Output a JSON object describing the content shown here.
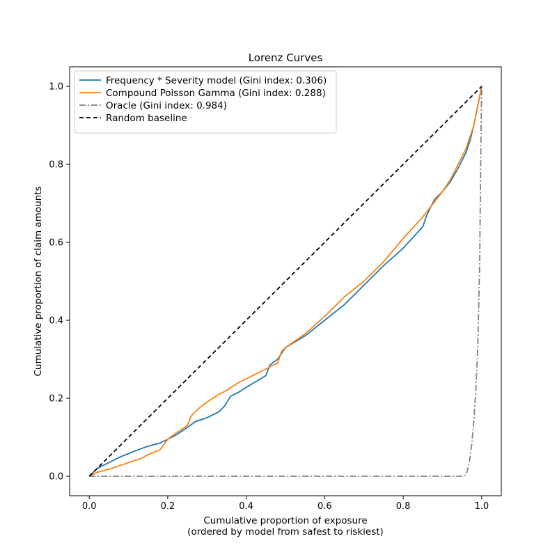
{
  "chart_data": {
    "type": "line",
    "title": "Lorenz Curves",
    "xlabel": "Cumulative proportion of exposure",
    "xlabel_line2": "(ordered by model from safest to riskiest)",
    "ylabel": "Cumulative proportion of claim amounts",
    "xlim": [
      -0.05,
      1.05
    ],
    "ylim": [
      -0.05,
      1.05
    ],
    "xticks": [
      "0.0",
      "0.2",
      "0.4",
      "0.6",
      "0.8",
      "1.0"
    ],
    "yticks": [
      "0.0",
      "0.2",
      "0.4",
      "0.6",
      "0.8",
      "1.0"
    ],
    "grid": false,
    "legend_position": "upper-left",
    "series": [
      {
        "name": "Frequency * Severity model (Gini index: 0.306)",
        "color": "#1f77b4",
        "style": "solid",
        "x": [
          0.0,
          0.02,
          0.05,
          0.08,
          0.1,
          0.13,
          0.15,
          0.18,
          0.2,
          0.22,
          0.25,
          0.27,
          0.3,
          0.33,
          0.345,
          0.36,
          0.38,
          0.4,
          0.42,
          0.45,
          0.46,
          0.48,
          0.49,
          0.5,
          0.55,
          0.6,
          0.65,
          0.7,
          0.75,
          0.8,
          0.85,
          0.86,
          0.88,
          0.9,
          0.92,
          0.94,
          0.96,
          0.97,
          0.98,
          0.99,
          1.0
        ],
        "y": [
          0.0,
          0.02,
          0.035,
          0.05,
          0.058,
          0.07,
          0.077,
          0.085,
          0.095,
          0.105,
          0.125,
          0.14,
          0.15,
          0.165,
          0.18,
          0.205,
          0.215,
          0.228,
          0.24,
          0.258,
          0.285,
          0.3,
          0.315,
          0.33,
          0.36,
          0.4,
          0.44,
          0.49,
          0.54,
          0.585,
          0.64,
          0.67,
          0.71,
          0.73,
          0.755,
          0.79,
          0.83,
          0.86,
          0.9,
          0.95,
          1.0
        ]
      },
      {
        "name": "Compound Poisson Gamma (Gini index: 0.288)",
        "color": "#ff7f0e",
        "style": "solid",
        "x": [
          0.0,
          0.02,
          0.05,
          0.08,
          0.1,
          0.13,
          0.15,
          0.18,
          0.2,
          0.22,
          0.25,
          0.26,
          0.28,
          0.3,
          0.33,
          0.35,
          0.38,
          0.4,
          0.42,
          0.45,
          0.48,
          0.49,
          0.5,
          0.55,
          0.6,
          0.65,
          0.7,
          0.75,
          0.8,
          0.85,
          0.9,
          0.92,
          0.94,
          0.96,
          0.97,
          0.98,
          0.99,
          1.0
        ],
        "y": [
          0.0,
          0.01,
          0.018,
          0.028,
          0.035,
          0.045,
          0.055,
          0.068,
          0.095,
          0.11,
          0.13,
          0.155,
          0.175,
          0.19,
          0.21,
          0.22,
          0.24,
          0.25,
          0.26,
          0.275,
          0.29,
          0.32,
          0.33,
          0.365,
          0.41,
          0.46,
          0.5,
          0.55,
          0.61,
          0.665,
          0.73,
          0.76,
          0.8,
          0.84,
          0.87,
          0.9,
          0.95,
          1.0
        ]
      },
      {
        "name": "Oracle (Gini index: 0.984)",
        "color": "#808080",
        "style": "dashdot",
        "x": [
          0.0,
          0.955,
          0.96,
          0.965,
          0.97,
          0.975,
          0.98,
          0.985,
          0.99,
          0.995,
          0.998,
          1.0
        ],
        "y": [
          0.0,
          0.0,
          0.003,
          0.02,
          0.045,
          0.085,
          0.14,
          0.22,
          0.33,
          0.55,
          0.85,
          1.0
        ]
      },
      {
        "name": "Random baseline",
        "color": "#000000",
        "style": "dashed",
        "x": [
          0.0,
          1.0
        ],
        "y": [
          0.0,
          1.0
        ]
      }
    ]
  }
}
